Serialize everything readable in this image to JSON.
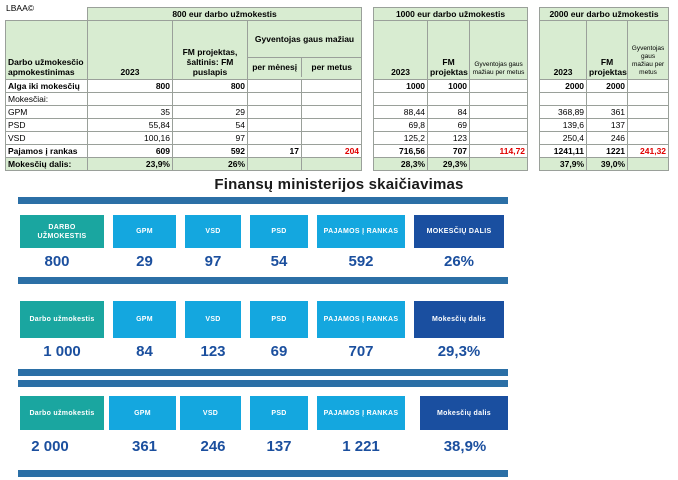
{
  "watermark": "LBAA©",
  "table": {
    "group_headers": [
      "800 eur darbo užmokestis",
      "1000 eur darbo užmokestis",
      "2000 eur darbo užmokestis"
    ],
    "row_label_header": "Darbo užmokesčio apmokestinimas",
    "g1_cols": [
      "2023",
      "FM projektas, šaltinis: FM puslapis",
      "Gyventojas gaus mažiau",
      "per mėnesį",
      "per metus"
    ],
    "g2_cols": [
      "2023",
      "FM projektas",
      "Gyventojas gaus mažiau per metus"
    ],
    "g3_cols": [
      "2023",
      "FM projektas",
      "Gyventojas gaus mažiau per metus"
    ],
    "rows": [
      {
        "label": "Alga iki mokesčių",
        "v": [
          "800",
          "800",
          "",
          "",
          "1000",
          "1000",
          "",
          "2000",
          "2000",
          ""
        ]
      },
      {
        "label": "Mokesčiai:",
        "v": [
          "",
          "",
          "",
          "",
          "",
          "",
          "",
          "",
          "",
          ""
        ]
      },
      {
        "label": "GPM",
        "v": [
          "35",
          "29",
          "",
          "",
          "88,44",
          "84",
          "",
          "368,89",
          "361",
          ""
        ]
      },
      {
        "label": "PSD",
        "v": [
          "55,84",
          "54",
          "",
          "",
          "69,8",
          "69",
          "",
          "139,6",
          "137",
          ""
        ]
      },
      {
        "label": "VSD",
        "v": [
          "100,16",
          "97",
          "",
          "",
          "125,2",
          "123",
          "",
          "250,4",
          "246",
          ""
        ]
      },
      {
        "label": "Pajamos į rankas",
        "v": [
          "609",
          "592",
          "17",
          "204",
          "716,56",
          "707",
          "114,72",
          "1241,11",
          "1221",
          "241,32"
        ]
      },
      {
        "label": "Mokesčių dalis:",
        "v": [
          "23,9%",
          "26%",
          "",
          "",
          "28,3%",
          "29,3%",
          "",
          "37,9%",
          "39,0%",
          ""
        ]
      }
    ]
  },
  "fm": {
    "title": "Finansų ministerijos skaičiavimas",
    "labels": {
      "darbo": "DARBO UŽMOKESTIS",
      "darbo2": "Darbo užmokestis",
      "gpm": "GPM",
      "vsd": "VSD",
      "psd": "PSD",
      "pajamos": "PAJAMOS Į RANKAS",
      "mokesciu": "MOKESČIŲ DALIS",
      "mokesciu2": "Mokesčių dalis"
    },
    "rows": [
      {
        "darbo": "800",
        "gpm": "29",
        "vsd": "97",
        "psd": "54",
        "pajamos": "592",
        "dalis": "26%"
      },
      {
        "darbo": "1 000",
        "gpm": "84",
        "vsd": "123",
        "psd": "69",
        "pajamos": "707",
        "dalis": "29,3%"
      },
      {
        "darbo": "2 000",
        "gpm": "361",
        "vsd": "246",
        "psd": "137",
        "pajamos": "1 221",
        "dalis": "38,9%"
      }
    ]
  },
  "colors": {
    "teal": "#1aa6a0",
    "cyan": "#14a7df",
    "navy": "#1a4fa0",
    "bar": "#2b6fa6",
    "value": "#1b4f9e",
    "header_green": "#d8ecd1",
    "red": "#e00000"
  }
}
